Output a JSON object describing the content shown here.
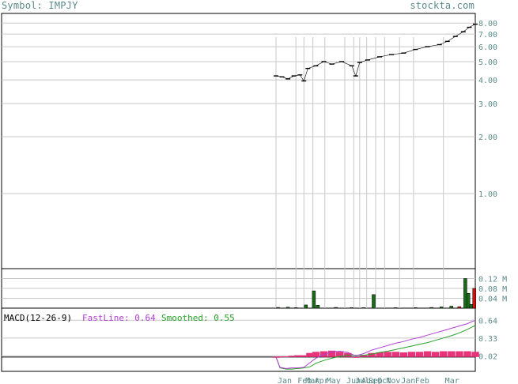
{
  "header": {
    "symbol_label": "Symbol: IMPJY",
    "site": "stockta.com"
  },
  "colors": {
    "grid": "#c8c8c8",
    "axis_text": "#5b8a8a",
    "price": "#000000",
    "vol_up": "#1a6b1a",
    "vol_down": "#cc1111",
    "hist": "#e8327a",
    "fast": "#b040d0",
    "smooth": "#28a028"
  },
  "chart_data": [
    {
      "type": "line",
      "name": "price",
      "scale": "log",
      "yticks": [
        "8.00",
        "7.00",
        "6.00",
        "5.00",
        "4.00",
        "3.00",
        "2.00",
        "1.00"
      ],
      "yticks_values": [
        8,
        7,
        6,
        5,
        4,
        3,
        2,
        1
      ],
      "ylim": [
        0.4,
        9.0
      ],
      "grid": true,
      "points": [
        [
          0.0,
          4.2
        ],
        [
          0.03,
          4.15
        ],
        [
          0.06,
          4.05
        ],
        [
          0.09,
          4.2
        ],
        [
          0.12,
          4.25
        ],
        [
          0.14,
          3.95
        ],
        [
          0.16,
          4.6
        ],
        [
          0.2,
          4.75
        ],
        [
          0.24,
          5.0
        ],
        [
          0.28,
          4.85
        ],
        [
          0.33,
          5.0
        ],
        [
          0.38,
          4.75
        ],
        [
          0.4,
          4.2
        ],
        [
          0.42,
          4.95
        ],
        [
          0.46,
          5.1
        ],
        [
          0.52,
          5.3
        ],
        [
          0.58,
          5.45
        ],
        [
          0.64,
          5.55
        ],
        [
          0.7,
          5.8
        ],
        [
          0.76,
          6.0
        ],
        [
          0.82,
          6.15
        ],
        [
          0.86,
          6.4
        ],
        [
          0.9,
          6.8
        ],
        [
          0.94,
          7.2
        ],
        [
          0.97,
          7.6
        ],
        [
          1.0,
          7.9
        ]
      ]
    },
    {
      "type": "bar",
      "name": "volume",
      "yticks": [
        "0.12 M",
        "0.08 M",
        "0.04 M"
      ],
      "yticks_values": [
        0.12,
        0.08,
        0.04
      ],
      "ylim": [
        0,
        0.16
      ],
      "bars": [
        [
          0.01,
          0.003,
          "up"
        ],
        [
          0.06,
          0.004,
          "up"
        ],
        [
          0.1,
          0.002,
          "up"
        ],
        [
          0.15,
          0.013,
          "up"
        ],
        [
          0.19,
          0.07,
          "up"
        ],
        [
          0.21,
          0.012,
          "up"
        ],
        [
          0.3,
          0.003,
          "up"
        ],
        [
          0.38,
          0.002,
          "up"
        ],
        [
          0.44,
          0.002,
          "up"
        ],
        [
          0.49,
          0.055,
          "up"
        ],
        [
          0.6,
          0.002,
          "up"
        ],
        [
          0.7,
          0.002,
          "up"
        ],
        [
          0.78,
          0.003,
          "up"
        ],
        [
          0.83,
          0.005,
          "up"
        ],
        [
          0.88,
          0.008,
          "up"
        ],
        [
          0.95,
          0.12,
          "up"
        ],
        [
          0.965,
          0.06,
          "up"
        ],
        [
          0.98,
          0.015,
          "up"
        ],
        [
          0.995,
          0.08,
          "down"
        ],
        [
          0.92,
          0.006,
          "down"
        ]
      ]
    },
    {
      "type": "line",
      "name": "macd",
      "title": "MACD(12-26-9)",
      "fast_label": "FastLine: 0.64",
      "smooth_label": "Smoothed: 0.55",
      "yticks": [
        "0.64",
        "0.33",
        "0.02"
      ],
      "yticks_values": [
        0.64,
        0.33,
        0.02
      ],
      "ylim": [
        -0.25,
        0.85
      ],
      "x": [
        0,
        0.02,
        0.05,
        0.08,
        0.11,
        0.14,
        0.17,
        0.2,
        0.24,
        0.28,
        0.32,
        0.36,
        0.4,
        0.44,
        0.48,
        0.52,
        0.56,
        0.6,
        0.64,
        0.68,
        0.72,
        0.76,
        0.8,
        0.84,
        0.88,
        0.92,
        0.96,
        1.0
      ],
      "fast": [
        0.0,
        -0.18,
        -0.2,
        -0.19,
        -0.19,
        -0.18,
        -0.1,
        -0.02,
        0.04,
        0.09,
        0.1,
        0.08,
        0.02,
        0.06,
        0.12,
        0.16,
        0.2,
        0.24,
        0.27,
        0.31,
        0.34,
        0.38,
        0.42,
        0.46,
        0.5,
        0.54,
        0.58,
        0.64
      ],
      "smooth": [
        0.0,
        -0.19,
        -0.21,
        -0.21,
        -0.2,
        -0.19,
        -0.17,
        -0.11,
        -0.06,
        -0.02,
        0.01,
        0.03,
        0.03,
        0.03,
        0.05,
        0.08,
        0.1,
        0.13,
        0.16,
        0.19,
        0.22,
        0.25,
        0.29,
        0.33,
        0.37,
        0.42,
        0.48,
        0.55
      ],
      "hist": [
        0.0,
        0.01,
        0.01,
        0.02,
        0.03,
        0.03,
        0.07,
        0.09,
        0.1,
        0.11,
        0.09,
        0.07,
        -0.01,
        0.03,
        0.07,
        0.08,
        0.09,
        0.09,
        0.08,
        0.09,
        0.09,
        0.1,
        0.09,
        0.1,
        0.1,
        0.1,
        0.1,
        0.09
      ]
    }
  ],
  "xaxis": {
    "labels": [
      "Jan",
      "Feb",
      "Mar",
      "Apr",
      "May",
      "Jun",
      "Jul",
      "Aug",
      "Sep",
      "Oct",
      "Nov",
      "Jan",
      "Feb",
      "Mar"
    ],
    "positions": [
      0.0,
      0.1,
      0.14,
      0.185,
      0.245,
      0.345,
      0.39,
      0.42,
      0.455,
      0.5,
      0.545,
      0.62,
      0.69,
      0.84
    ]
  }
}
